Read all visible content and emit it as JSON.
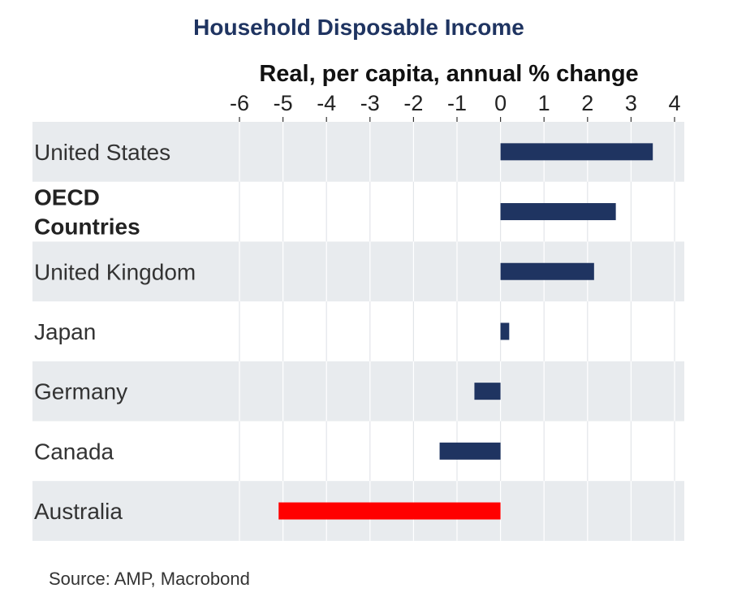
{
  "chart_data": {
    "type": "bar",
    "orientation": "horizontal",
    "title": "Household Disposable Income",
    "subtitle": "Real, per capita, annual % change",
    "source": "Source: AMP, Macrobond",
    "xlim": [
      -6,
      4
    ],
    "xticks": [
      "-6",
      "-5",
      "-4",
      "-3",
      "-2",
      "-1",
      "0",
      "1",
      "2",
      "3",
      "4"
    ],
    "grid": true,
    "categories": [
      {
        "label": "United States",
        "lines": [
          "United States"
        ],
        "value": 3.5,
        "color": "#1f3461",
        "bold": false
      },
      {
        "label": "OECD Countries",
        "lines": [
          "OECD",
          "Countries"
        ],
        "value": 2.65,
        "color": "#1f3461",
        "bold": true
      },
      {
        "label": "United Kingdom",
        "lines": [
          "United Kingdom"
        ],
        "value": 2.15,
        "color": "#1f3461",
        "bold": false
      },
      {
        "label": "Japan",
        "lines": [
          "Japan"
        ],
        "value": 0.2,
        "color": "#1f3461",
        "bold": false
      },
      {
        "label": "Germany",
        "lines": [
          "Germany"
        ],
        "value": -0.6,
        "color": "#1f3461",
        "bold": false
      },
      {
        "label": "Canada",
        "lines": [
          "Canada"
        ],
        "value": -1.4,
        "color": "#1f3461",
        "bold": false
      },
      {
        "label": "Australia",
        "lines": [
          "Australia"
        ],
        "value": -5.1,
        "color": "#ff0000",
        "bold": false
      }
    ],
    "colors": {
      "title": "#1f3461",
      "bar_default": "#1f3461",
      "bar_highlight": "#ff0000",
      "band": "#e8ebee",
      "grid_on_band": "#ffffff",
      "grid_on_white": "#e2e5e9"
    }
  }
}
